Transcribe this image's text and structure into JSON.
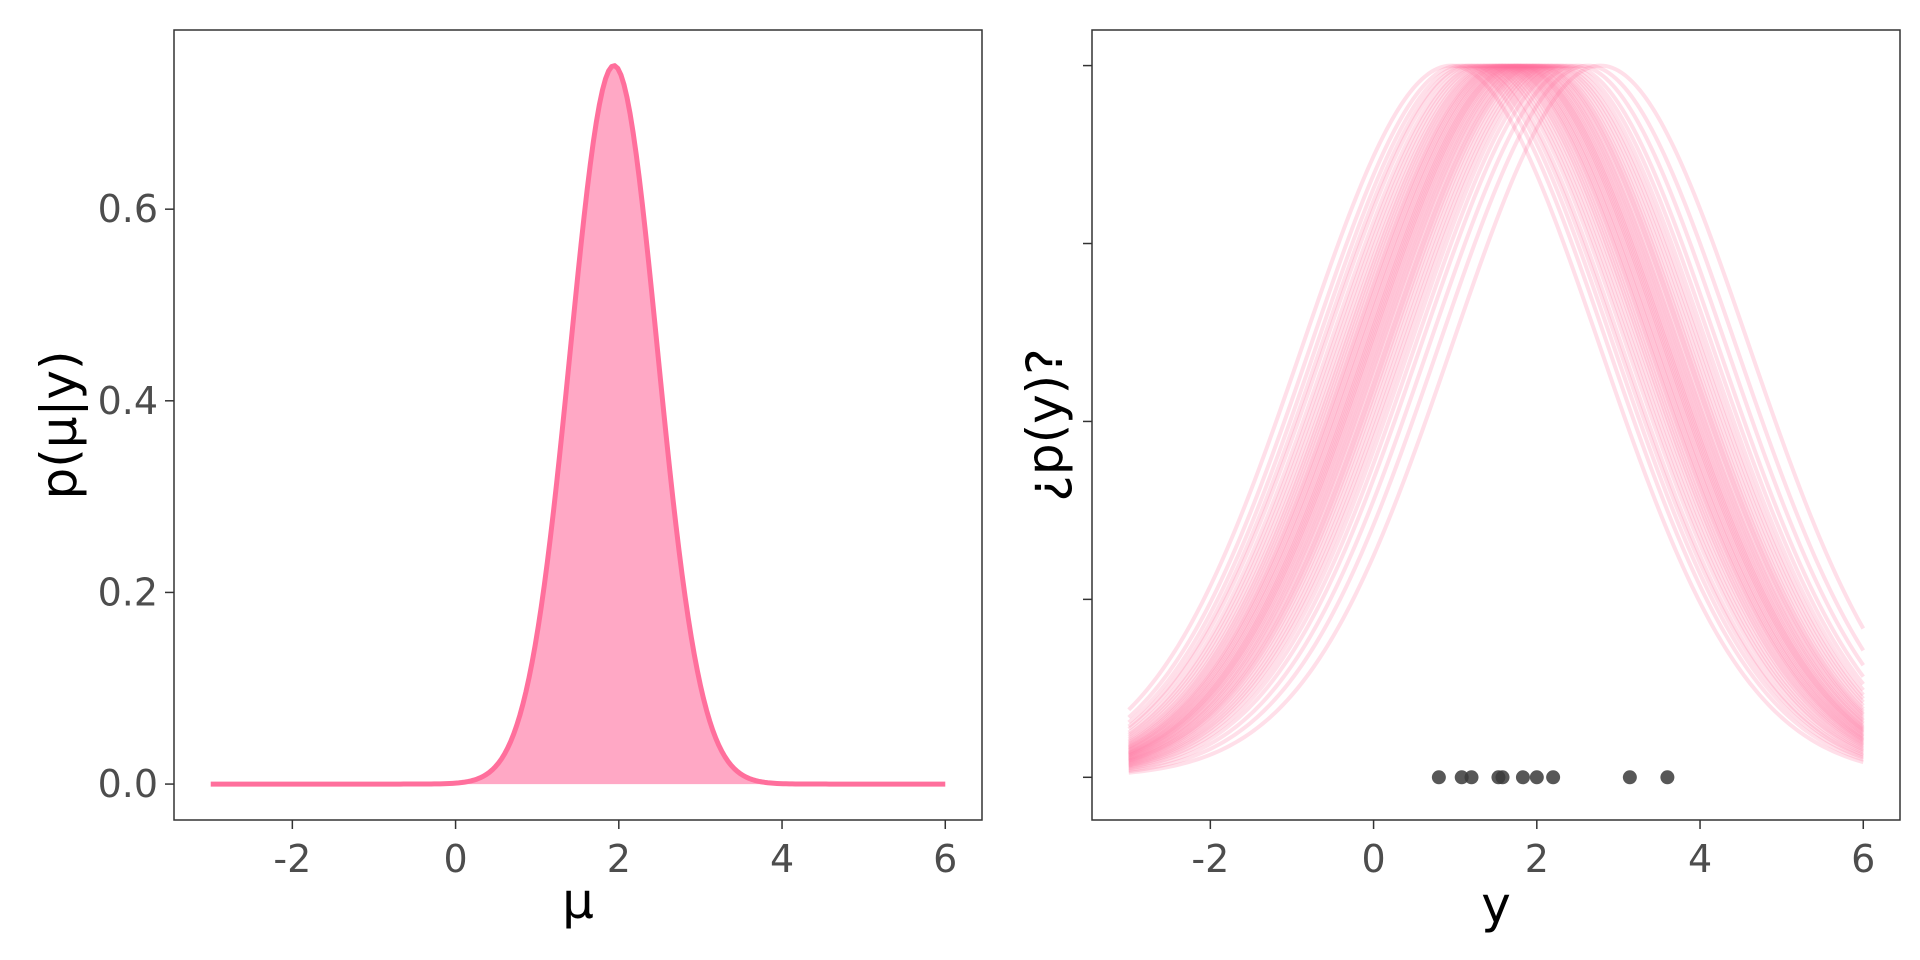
{
  "colors": {
    "accent": "#ff6f9c",
    "fill": "#ffa8c5",
    "points": "#3a3a3a",
    "axis_text": "#4d4d4d"
  },
  "chart_data": [
    {
      "type": "area",
      "xlabel": "μ",
      "ylabel": "p(μ|y)",
      "xlim": [
        -3.45,
        6.45
      ],
      "ylim": [
        -0.0375,
        0.787
      ],
      "x_ticks": [
        -2,
        0,
        2,
        4,
        6
      ],
      "x_tick_labels": [
        "-2",
        "0",
        "2",
        "4",
        "6"
      ],
      "y_ticks": [
        0,
        0.2,
        0.4,
        0.6
      ],
      "y_tick_labels": [
        "0.0",
        "0.2",
        "0.4",
        "0.6"
      ],
      "x_range": [
        -3,
        6
      ],
      "series": [
        {
          "distribution": "normal",
          "mean": 1.94,
          "sd": 0.532,
          "fill": "#ffa8c5",
          "line": "#ff6f9c"
        }
      ],
      "grid": false
    },
    {
      "type": "line",
      "xlabel": "y",
      "ylabel": "¿p(y)?",
      "xlim": [
        -3.45,
        6.45
      ],
      "ylim": [
        -0.06,
        1.05
      ],
      "x_ticks": [
        -2,
        0,
        2,
        4,
        6
      ],
      "x_tick_labels": [
        "-2",
        "0",
        "2",
        "4",
        "6"
      ],
      "y_ticks": [
        0,
        0.25,
        0.5,
        0.75,
        1.0
      ],
      "y_tick_labels": [
        "",
        "",
        "",
        "",
        ""
      ],
      "x_range": [
        -3,
        6
      ],
      "curve_sd": 1.82,
      "curve_means": [
        0.95,
        1.05,
        1.12,
        1.18,
        1.22,
        1.28,
        1.32,
        1.36,
        1.4,
        1.44,
        1.47,
        1.5,
        1.53,
        1.56,
        1.58,
        1.6,
        1.63,
        1.65,
        1.67,
        1.7,
        1.72,
        1.74,
        1.76,
        1.78,
        1.8,
        1.82,
        1.85,
        1.87,
        1.9,
        1.92,
        1.95,
        1.98,
        2.0,
        2.03,
        2.06,
        2.1,
        2.14,
        2.18,
        2.22,
        2.27,
        2.33,
        2.4,
        2.5,
        2.62,
        2.78
      ],
      "curve_opacity": 0.22,
      "line": "#ff6f9c",
      "observed_y": [
        0.8,
        1.08,
        1.2,
        1.53,
        1.58,
        1.83,
        2.0,
        2.2,
        3.14,
        3.6
      ],
      "grid": false
    }
  ]
}
